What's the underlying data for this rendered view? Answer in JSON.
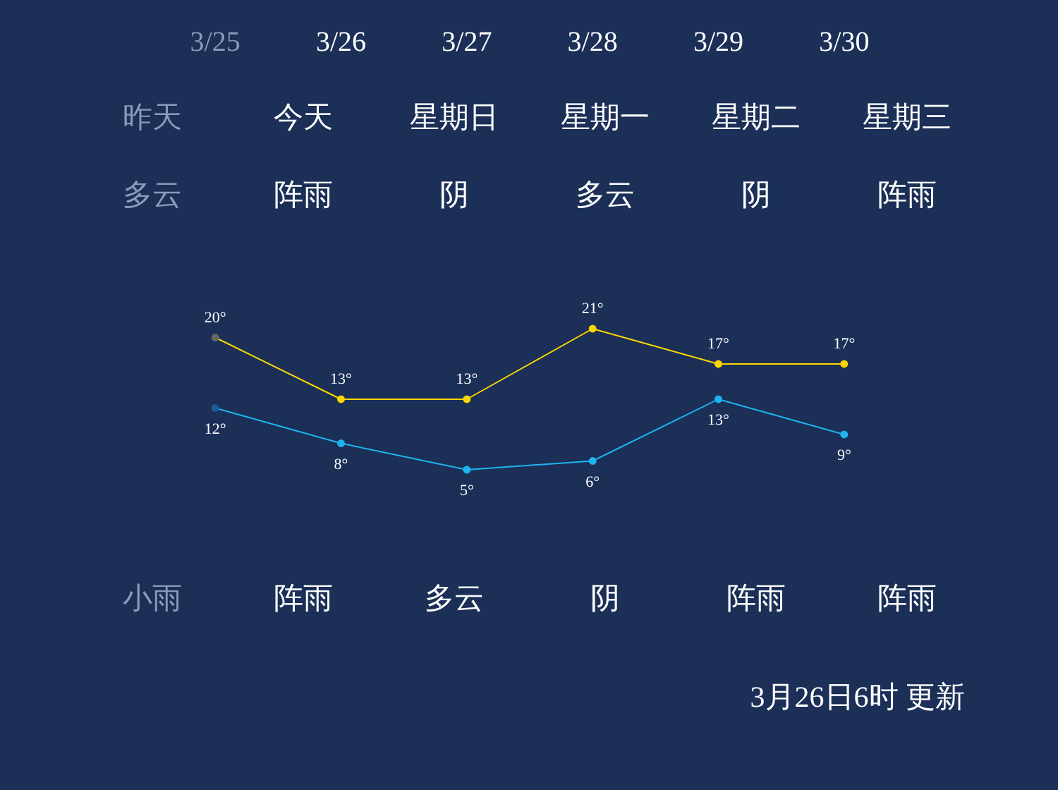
{
  "chart_data": {
    "type": "line",
    "categories": [
      "3/25",
      "3/26",
      "3/27",
      "3/28",
      "3/29",
      "3/30"
    ],
    "series": [
      {
        "color": "#ffd700",
        "colors": [
          "#666666",
          "#ffd700",
          "#ffd700",
          "#ffd700",
          "#ffd700",
          "#ffd700"
        ],
        "values": [
          20,
          13,
          13,
          21,
          17,
          17
        ],
        "value_labels": [
          "20°",
          "13°",
          "13°",
          "21°",
          "17°",
          "17°"
        ]
      },
      {
        "color": "#1eb4f0",
        "colors": [
          "#1c5a9a",
          "#1eb4f0",
          "#1eb4f0",
          "#1eb4f0",
          "#1eb4f0",
          "#1eb4f0"
        ],
        "values": [
          12,
          8,
          5,
          6,
          13,
          9
        ],
        "value_labels": [
          "12°",
          "8°",
          "5°",
          "6°",
          "13°",
          "9°"
        ]
      }
    ],
    "marker": "circle",
    "line_style": "solid",
    "annotations": [
      "昨天",
      "今天",
      "星期日",
      "星期一",
      "星期二",
      "星期三",
      "多云",
      "阵雨",
      "阴",
      "多云",
      "阴",
      "阵雨",
      "小雨",
      "阵雨",
      "多云",
      "阴",
      "阵雨",
      "阵雨",
      "3月26日6时 更新"
    ]
  }
}
